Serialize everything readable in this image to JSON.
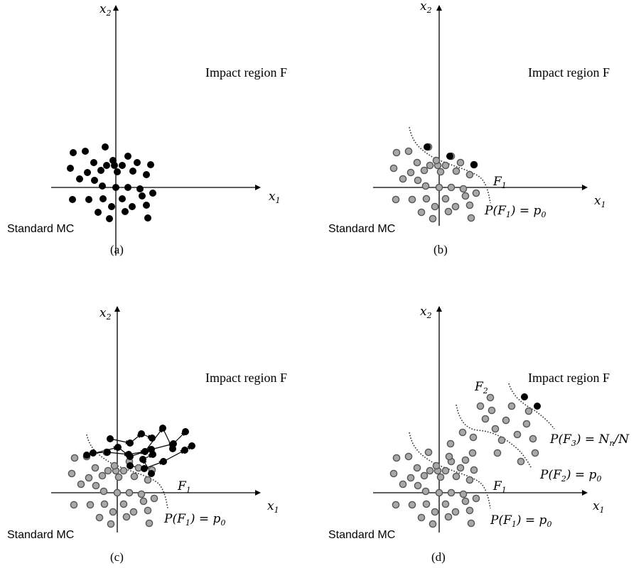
{
  "panels": [
    {
      "id": "a",
      "caption": "(a)",
      "axis_x": "x",
      "axis_x_sub": "1",
      "axis_y": "x",
      "axis_y_sub": "2",
      "region_label": "Impact region F",
      "method_label": "Standard MC",
      "boundaries": [],
      "arrows": false
    },
    {
      "id": "b",
      "caption": "(b)",
      "axis_x": "x",
      "axis_x_sub": "1",
      "axis_y": "x",
      "axis_y_sub": "2",
      "region_label": "Impact region F",
      "method_label": "Standard MC",
      "boundaries": [
        {
          "name": "F",
          "sub": "1",
          "prob": "P(F",
          "prob_tail": ") = p",
          "prob_tail_sub": "0"
        }
      ],
      "arrows": false
    },
    {
      "id": "c",
      "caption": "(c)",
      "axis_x": "x",
      "axis_x_sub": "1",
      "axis_y": "x",
      "axis_y_sub": "2",
      "region_label": "Impact region F",
      "method_label": "Standard MC",
      "boundaries": [
        {
          "name": "F",
          "sub": "1",
          "prob": "P(F",
          "prob_tail": ") = p",
          "prob_tail_sub": "0"
        }
      ],
      "arrows": true
    },
    {
      "id": "d",
      "caption": "(d)",
      "axis_x": "x",
      "axis_x_sub": "1",
      "axis_y": "x",
      "axis_y_sub": "2",
      "region_label": "Impact region F",
      "method_label": "Standard MC",
      "boundaries": [
        {
          "name": "F",
          "sub": "1",
          "prob": "P(F",
          "prob_tail": ") = p",
          "prob_tail_sub": "0"
        },
        {
          "name": "F",
          "sub": "2",
          "prob": "P(F",
          "prob_tail": ") = p",
          "prob_tail_sub": "0"
        },
        {
          "name": "",
          "sub": "3",
          "prob": "P(F",
          "prob_tail": ") = N",
          "prob_tail_sub": "n",
          "prob_end": "/N"
        }
      ],
      "arrows": false
    }
  ],
  "colors": {
    "sample_black": "#000000",
    "sample_gray_fill": "#a8a8a8",
    "sample_gray_stroke": "#555555",
    "boundary": "#333333"
  }
}
